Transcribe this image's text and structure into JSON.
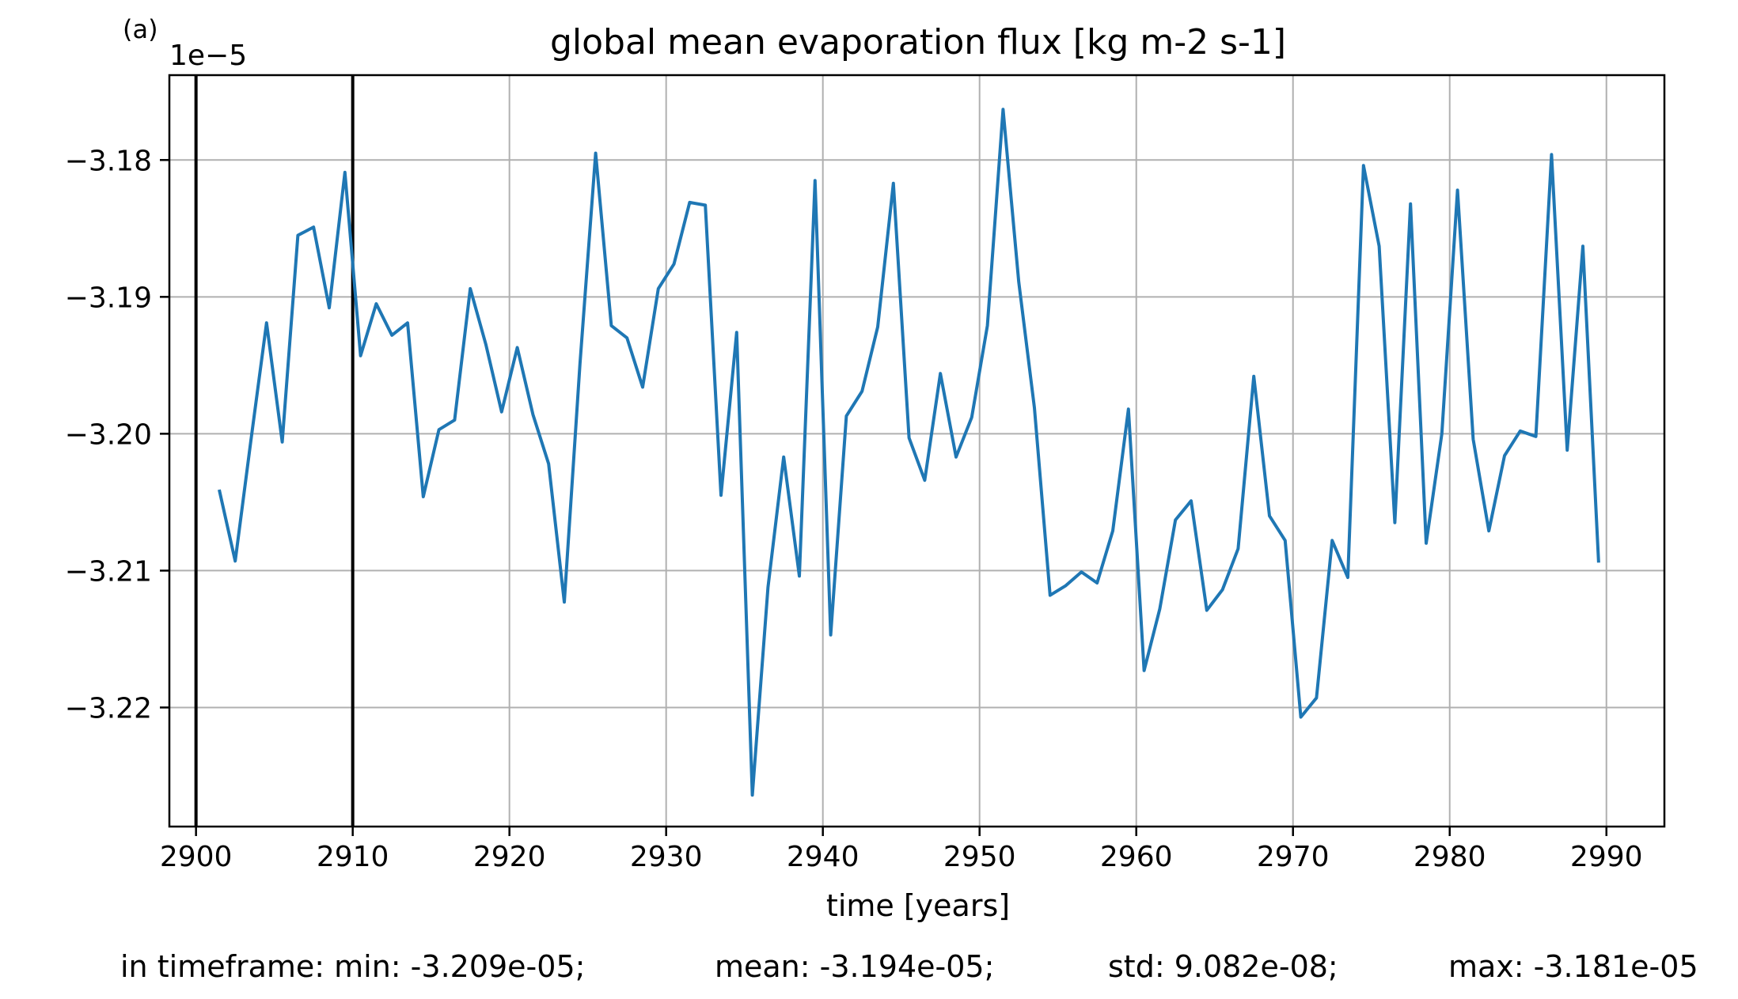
{
  "panel_label": "(a)",
  "chart_data": {
    "type": "line",
    "title": "global mean evaporation flux [kg m-2 s-1]",
    "xlabel": "time [years]",
    "ylabel": "",
    "offset_label": "1e−5",
    "xlim": [
      2898.3,
      2993.7
    ],
    "ylim": [
      -3.2287,
      -3.1738
    ],
    "xticks": [
      2900,
      2910,
      2920,
      2930,
      2940,
      2950,
      2960,
      2970,
      2980,
      2990
    ],
    "xtick_labels": [
      "2900",
      "2910",
      "2920",
      "2930",
      "2940",
      "2950",
      "2960",
      "2970",
      "2980",
      "2990"
    ],
    "yticks": [
      -3.18,
      -3.19,
      -3.2,
      -3.21,
      -3.22
    ],
    "ytick_labels": [
      "−3.18",
      "−3.19",
      "−3.20",
      "−3.21",
      "−3.22"
    ],
    "grid": true,
    "line_color": "#1f77b4",
    "vlines": [
      2900,
      2910
    ],
    "vline_color": "#000000",
    "series": [
      {
        "x": [
          2901.5,
          2902.5,
          2903.5,
          2904.5,
          2905.5,
          2906.5,
          2907.5,
          2908.5,
          2909.5,
          2910.5,
          2911.5,
          2912.5,
          2913.5,
          2914.5,
          2915.5,
          2916.5,
          2917.5,
          2918.5,
          2919.5,
          2920.5,
          2921.5,
          2922.5,
          2923.5,
          2924.5,
          2925.5,
          2926.5,
          2927.5,
          2928.5,
          2929.5,
          2930.5,
          2931.5,
          2932.5,
          2933.5,
          2934.5,
          2935.5,
          2936.5,
          2937.5,
          2938.5,
          2939.5,
          2940.5,
          2941.5,
          2942.5,
          2943.5,
          2944.5,
          2945.5,
          2946.5,
          2947.5,
          2948.5,
          2949.5,
          2950.5,
          2951.5,
          2952.5,
          2953.5,
          2954.5,
          2955.5,
          2956.5,
          2957.5,
          2958.5,
          2959.5,
          2960.5,
          2961.5,
          2962.5,
          2963.5,
          2964.5,
          2965.5,
          2966.5,
          2967.5,
          2968.5,
          2969.5,
          2970.5,
          2971.5,
          2972.5,
          2973.5,
          2974.5,
          2975.5,
          2976.5,
          2977.5,
          2978.5,
          2979.5,
          2980.5,
          2981.5,
          2982.5,
          2983.5,
          2984.5,
          2985.5,
          2986.5,
          2987.5,
          2988.5,
          2989.5
        ],
        "values": [
          -3.2042,
          -3.2093,
          -3.2005,
          -3.1919,
          -3.2006,
          -3.1855,
          -3.1849,
          -3.1908,
          -3.1809,
          -3.1943,
          -3.1905,
          -3.1928,
          -3.1919,
          -3.2046,
          -3.1997,
          -3.199,
          -3.1894,
          -3.1935,
          -3.1984,
          -3.1937,
          -3.1986,
          -3.2022,
          -3.2123,
          -3.1949,
          -3.1795,
          -3.1921,
          -3.193,
          -3.1966,
          -3.1894,
          -3.1876,
          -3.1831,
          -3.1833,
          -3.2045,
          -3.1926,
          -3.2264,
          -3.2112,
          -3.2017,
          -3.2104,
          -3.1815,
          -3.2147,
          -3.1987,
          -3.1969,
          -3.1922,
          -3.1817,
          -3.2003,
          -3.2034,
          -3.1956,
          -3.2017,
          -3.1988,
          -3.1921,
          -3.1763,
          -3.1889,
          -3.1981,
          -3.2118,
          -3.2111,
          -3.2101,
          -3.2109,
          -3.2071,
          -3.1982,
          -3.2173,
          -3.2128,
          -3.2063,
          -3.2049,
          -3.2129,
          -3.2114,
          -3.2084,
          -3.1958,
          -3.206,
          -3.2078,
          -3.2207,
          -3.2193,
          -3.2078,
          -3.2105,
          -3.1804,
          -3.1863,
          -3.2065,
          -3.1832,
          -3.208,
          -3.2,
          -3.1822,
          -3.2004,
          -3.2071,
          -3.2016,
          -3.1998,
          -3.2002,
          -3.1796,
          -3.2012,
          -3.1863,
          -3.2093
        ]
      }
    ]
  },
  "stats": {
    "min": "in timeframe: min: -3.209e-05;",
    "mean": "mean: -3.194e-05;",
    "std": "std: 9.082e-08;",
    "max": "max: -3.181e-05"
  }
}
